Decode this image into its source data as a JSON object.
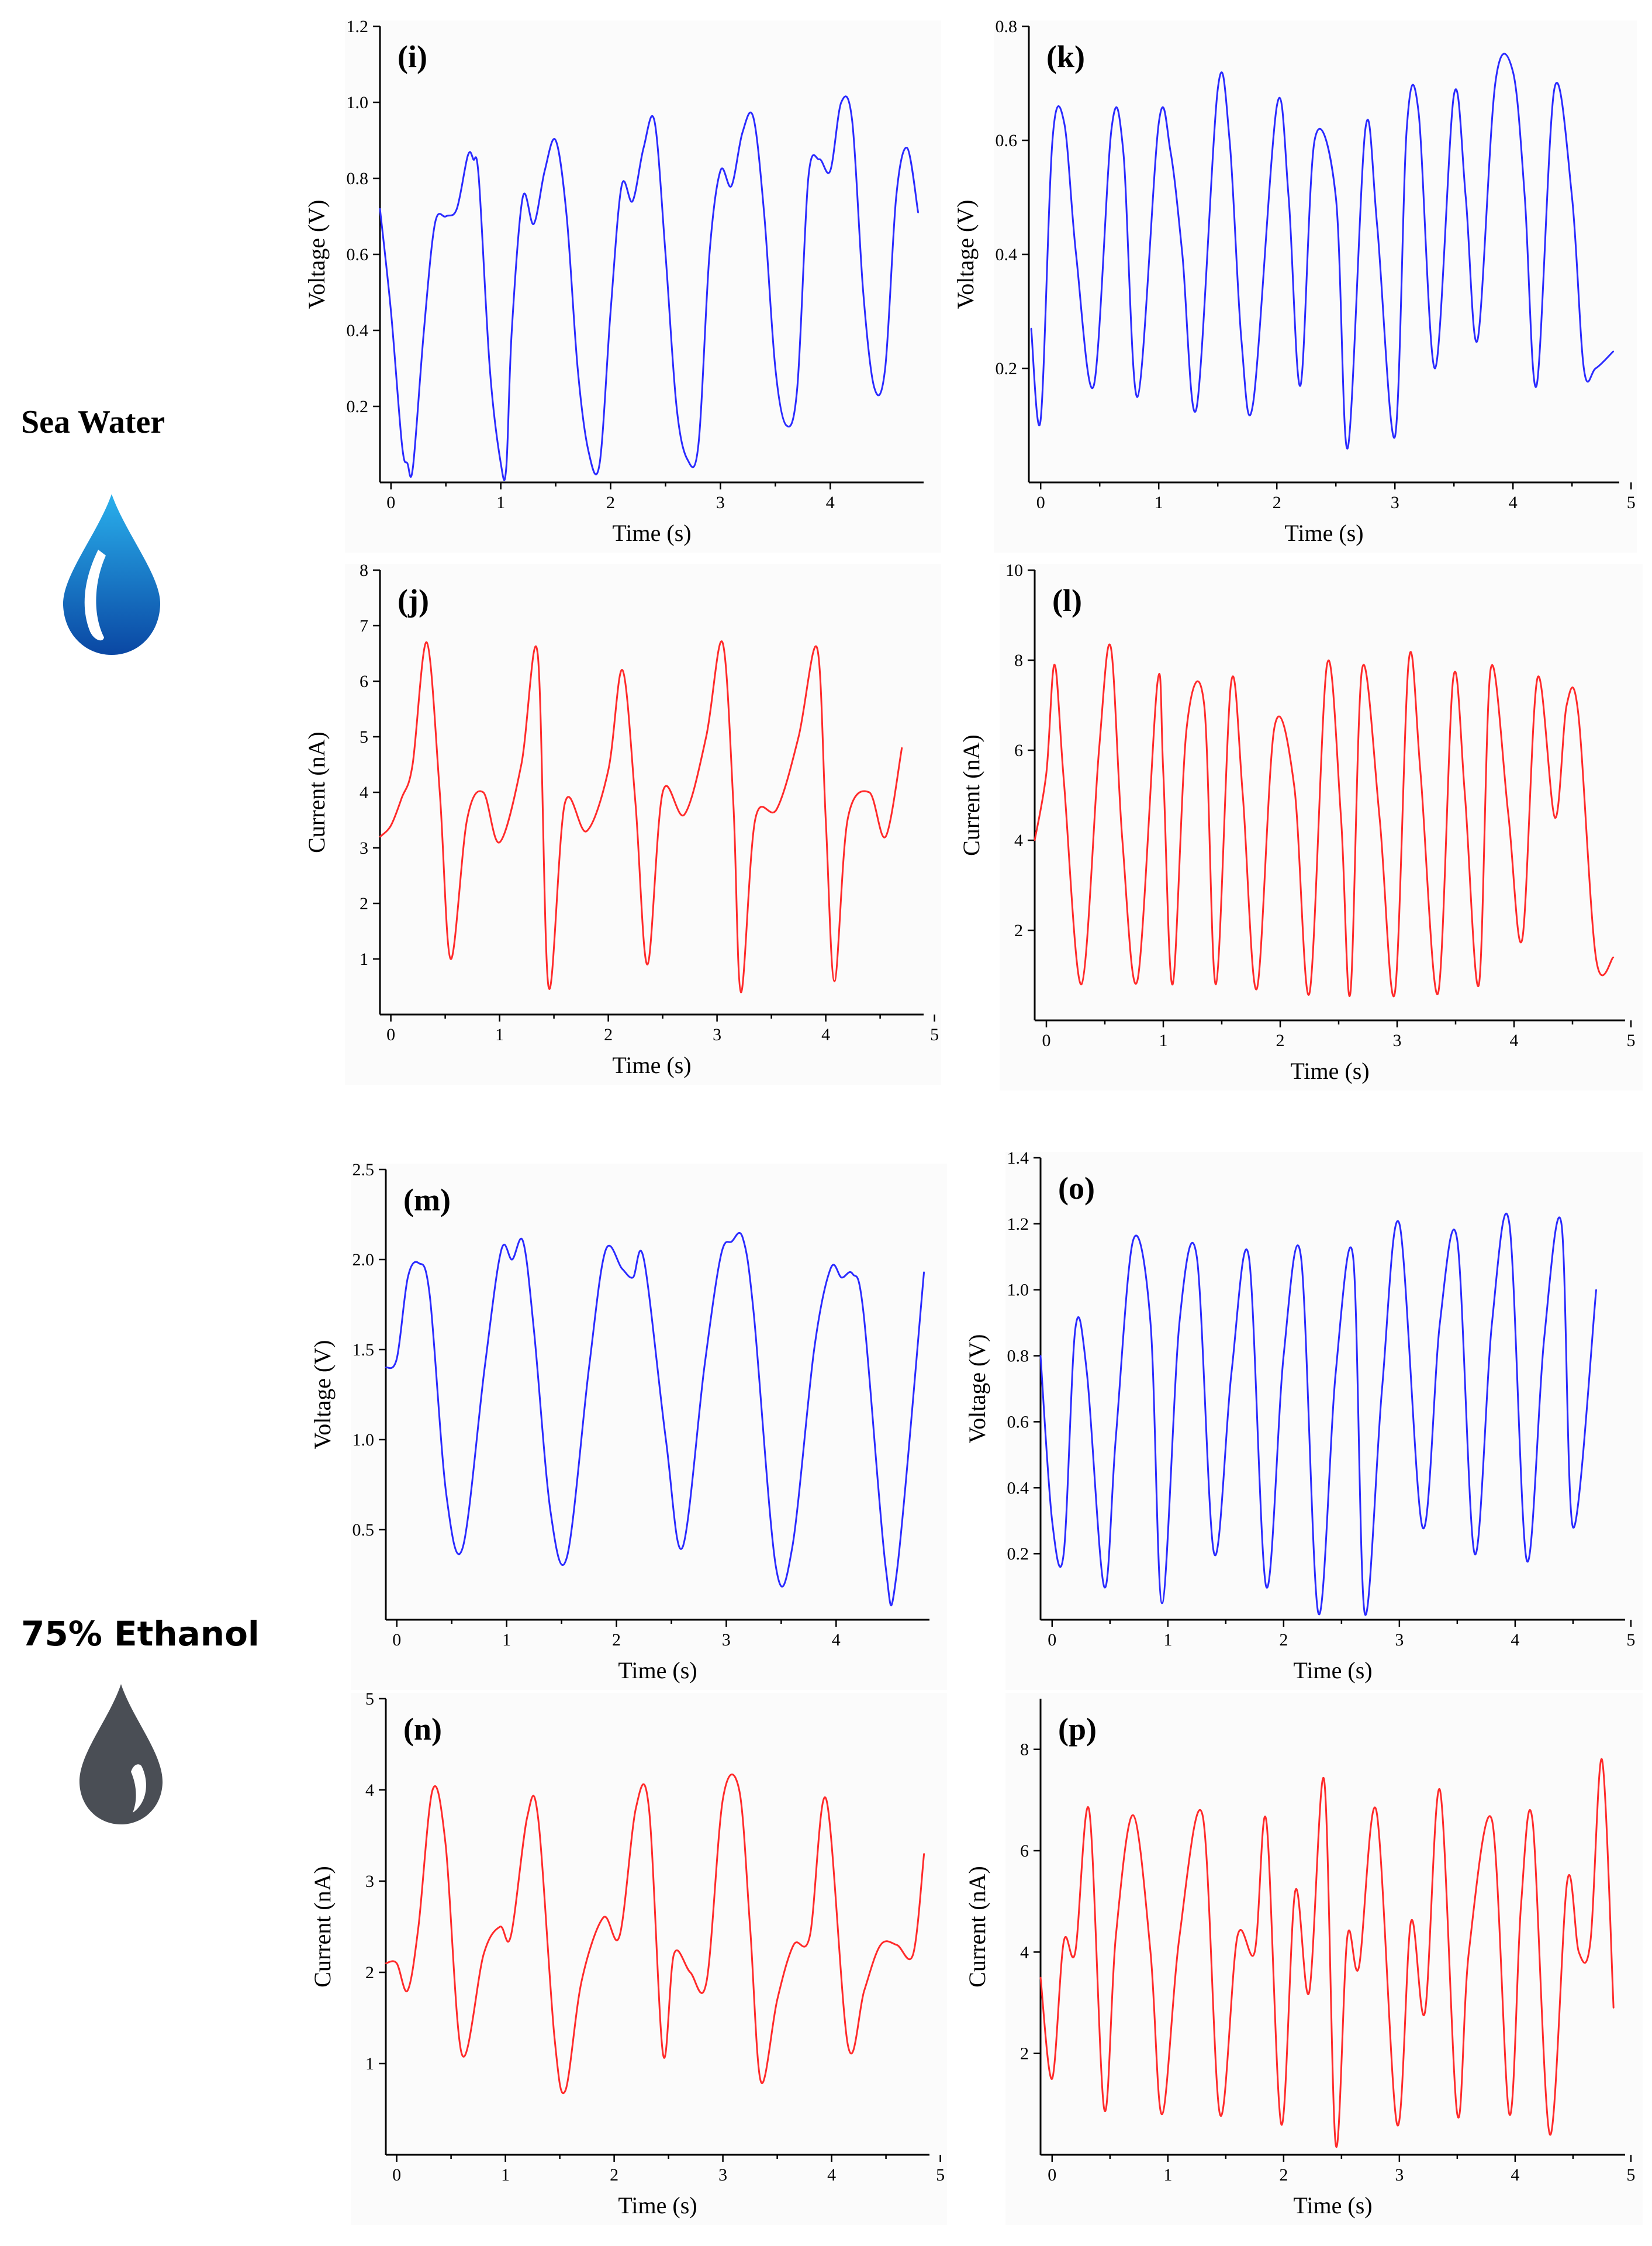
{
  "labels": {
    "sea_water": "Sea Water",
    "ethanol": "75% Ethanol"
  },
  "colors": {
    "voltage": "#2b2bff",
    "current": "#ff2b2b",
    "sea_drop_top": "#2ab0ec",
    "sea_drop_bottom": "#0a47a3",
    "eth_drop": "#4a4e55"
  },
  "icons": {
    "sea_drop": "water-drop-icon",
    "eth_drop": "ethanol-drop-icon"
  },
  "chart_data": [
    {
      "id": "i",
      "panel_label": "(i)",
      "type": "line",
      "series_name": "Voltage",
      "color": "#2b2bff",
      "xlabel": "Time (s)",
      "ylabel": "Voltage (V)",
      "xlim": [
        -0.1,
        4.85
      ],
      "ylim": [
        0.0,
        1.2
      ],
      "xticks": [
        0,
        1,
        2,
        3,
        4
      ],
      "xtick_labels": [
        "0",
        "1",
        "2",
        "3",
        "4"
      ],
      "yticks": [
        0.2,
        0.4,
        0.6,
        0.8,
        1.0,
        1.2
      ],
      "ytick_labels": [
        "0.2",
        "0.4",
        "0.6",
        "0.8",
        "1.0",
        "1.2"
      ],
      "x": [
        -0.1,
        0.0,
        0.1,
        0.15,
        0.2,
        0.3,
        0.4,
        0.5,
        0.6,
        0.7,
        0.75,
        0.8,
        0.9,
        1.0,
        1.05,
        1.1,
        1.2,
        1.3,
        1.4,
        1.5,
        1.6,
        1.7,
        1.8,
        1.9,
        2.0,
        2.1,
        2.2,
        2.3,
        2.4,
        2.5,
        2.6,
        2.7,
        2.8,
        2.9,
        3.0,
        3.1,
        3.2,
        3.3,
        3.4,
        3.5,
        3.6,
        3.7,
        3.8,
        3.9,
        4.0,
        4.1,
        4.2,
        4.3,
        4.4,
        4.5,
        4.6,
        4.7,
        4.8
      ],
      "values": [
        0.72,
        0.45,
        0.1,
        0.05,
        0.04,
        0.4,
        0.68,
        0.7,
        0.72,
        0.86,
        0.85,
        0.8,
        0.3,
        0.05,
        0.04,
        0.4,
        0.75,
        0.68,
        0.82,
        0.9,
        0.7,
        0.3,
        0.08,
        0.05,
        0.45,
        0.78,
        0.74,
        0.88,
        0.95,
        0.6,
        0.2,
        0.06,
        0.1,
        0.6,
        0.82,
        0.78,
        0.92,
        0.96,
        0.7,
        0.3,
        0.15,
        0.25,
        0.8,
        0.85,
        0.82,
        1.0,
        0.95,
        0.5,
        0.25,
        0.3,
        0.75,
        0.88,
        0.71
      ]
    },
    {
      "id": "k",
      "panel_label": "(k)",
      "type": "line",
      "series_name": "Voltage",
      "color": "#2b2bff",
      "xlabel": "Time (s)",
      "ylabel": "Voltage (V)",
      "xlim": [
        -0.1,
        4.9
      ],
      "ylim": [
        0.0,
        0.8
      ],
      "xticks": [
        0,
        1,
        2,
        3,
        4,
        5
      ],
      "xtick_labels": [
        "0",
        "1",
        "2",
        "3",
        "4",
        "5"
      ],
      "yticks": [
        0.2,
        0.4,
        0.6,
        0.8
      ],
      "ytick_labels": [
        "0.2",
        "0.4",
        "0.6",
        "0.8"
      ],
      "x": [
        -0.08,
        0.0,
        0.1,
        0.2,
        0.3,
        0.45,
        0.6,
        0.7,
        0.82,
        1.0,
        1.1,
        1.2,
        1.32,
        1.5,
        1.6,
        1.7,
        1.8,
        2.0,
        2.1,
        2.2,
        2.32,
        2.5,
        2.6,
        2.75,
        2.85,
        3.0,
        3.1,
        3.2,
        3.34,
        3.5,
        3.6,
        3.7,
        3.85,
        4.0,
        4.1,
        4.2,
        4.35,
        4.5,
        4.6,
        4.7,
        4.85
      ],
      "values": [
        0.27,
        0.11,
        0.6,
        0.63,
        0.4,
        0.17,
        0.62,
        0.58,
        0.15,
        0.63,
        0.58,
        0.4,
        0.13,
        0.69,
        0.6,
        0.25,
        0.14,
        0.66,
        0.5,
        0.17,
        0.6,
        0.5,
        0.06,
        0.62,
        0.45,
        0.08,
        0.62,
        0.65,
        0.2,
        0.68,
        0.5,
        0.25,
        0.7,
        0.72,
        0.5,
        0.17,
        0.69,
        0.5,
        0.2,
        0.2,
        0.23
      ]
    },
    {
      "id": "j",
      "panel_label": "(j)",
      "type": "line",
      "series_name": "Current",
      "color": "#ff2b2b",
      "xlabel": "Time (s)",
      "ylabel": "Current (nA)",
      "xlim": [
        -0.1,
        4.9
      ],
      "ylim": [
        0,
        8
      ],
      "xticks": [
        0,
        1,
        2,
        3,
        4,
        5
      ],
      "xtick_labels": [
        "0",
        "1",
        "2",
        "3",
        "4",
        "5"
      ],
      "yticks": [
        1,
        2,
        3,
        4,
        5,
        6,
        7,
        8
      ],
      "ytick_labels": [
        "1",
        "2",
        "3",
        "4",
        "5",
        "6",
        "7",
        "8"
      ],
      "x": [
        -0.1,
        0.0,
        0.1,
        0.2,
        0.33,
        0.45,
        0.55,
        0.7,
        0.85,
        1.0,
        1.2,
        1.35,
        1.45,
        1.6,
        1.8,
        2.0,
        2.13,
        2.25,
        2.36,
        2.5,
        2.7,
        2.9,
        3.05,
        3.15,
        3.22,
        3.35,
        3.55,
        3.75,
        3.92,
        4.0,
        4.08,
        4.2,
        4.4,
        4.55,
        4.7
      ],
      "values": [
        3.2,
        3.4,
        3.9,
        4.5,
        6.7,
        4.0,
        1.0,
        3.5,
        4.0,
        3.1,
        4.5,
        6.5,
        0.5,
        3.8,
        3.3,
        4.4,
        6.2,
        3.8,
        0.9,
        4.0,
        3.6,
        5.0,
        6.7,
        3.8,
        0.4,
        3.5,
        3.7,
        5.0,
        6.6,
        3.5,
        0.6,
        3.5,
        4.0,
        3.2,
        4.8
      ]
    },
    {
      "id": "l",
      "panel_label": "(l)",
      "type": "line",
      "series_name": "Current",
      "color": "#ff2b2b",
      "xlabel": "Time (s)",
      "ylabel": "Current (nA)",
      "xlim": [
        -0.1,
        4.95
      ],
      "ylim": [
        0,
        10
      ],
      "xticks": [
        0,
        1,
        2,
        3,
        4,
        5
      ],
      "xtick_labels": [
        "0",
        "1",
        "2",
        "3",
        "4",
        "5"
      ],
      "yticks": [
        2,
        4,
        6,
        8,
        10
      ],
      "ytick_labels": [
        "2",
        "4",
        "6",
        "8",
        "10"
      ],
      "x": [
        -0.1,
        0.0,
        0.07,
        0.15,
        0.3,
        0.45,
        0.55,
        0.65,
        0.78,
        0.95,
        1.0,
        1.08,
        1.2,
        1.35,
        1.45,
        1.58,
        1.68,
        1.8,
        1.95,
        2.12,
        2.25,
        2.4,
        2.52,
        2.6,
        2.7,
        2.85,
        2.98,
        3.1,
        3.2,
        3.35,
        3.48,
        3.58,
        3.7,
        3.8,
        3.95,
        4.07,
        4.2,
        4.35,
        4.45,
        4.55,
        4.7,
        4.85
      ],
      "values": [
        4.0,
        5.5,
        7.9,
        5.3,
        0.8,
        6.0,
        8.3,
        4.0,
        0.9,
        7.5,
        5.5,
        0.8,
        6.5,
        7.0,
        0.8,
        7.5,
        5.0,
        0.7,
        6.5,
        5.2,
        0.6,
        7.9,
        4.5,
        0.6,
        7.8,
        4.5,
        0.6,
        8.0,
        5.5,
        0.6,
        7.6,
        5.0,
        0.8,
        7.8,
        4.6,
        1.8,
        7.6,
        4.5,
        7.0,
        6.8,
        1.4,
        1.4
      ]
    },
    {
      "id": "m",
      "panel_label": "(m)",
      "type": "line",
      "series_name": "Voltage",
      "color": "#2b2bff",
      "xlabel": "Time (s)",
      "ylabel": "Voltage (V)",
      "xlim": [
        -0.1,
        4.85
      ],
      "ylim": [
        0.0,
        2.5
      ],
      "xticks": [
        0,
        1,
        2,
        3,
        4
      ],
      "xtick_labels": [
        "0",
        "1",
        "2",
        "3",
        "4"
      ],
      "yticks": [
        0.5,
        1.0,
        1.5,
        2.0,
        2.5
      ],
      "ytick_labels": [
        "0.5",
        "1.0",
        "1.5",
        "2.0",
        "2.5"
      ],
      "x": [
        -0.1,
        0.0,
        0.1,
        0.2,
        0.3,
        0.45,
        0.6,
        0.8,
        0.95,
        1.05,
        1.15,
        1.25,
        1.4,
        1.55,
        1.75,
        1.9,
        2.05,
        2.15,
        2.25,
        2.45,
        2.6,
        2.8,
        2.95,
        3.05,
        3.15,
        3.25,
        3.45,
        3.6,
        3.8,
        3.95,
        4.05,
        4.15,
        4.25,
        4.45,
        4.55,
        4.8
      ],
      "values": [
        1.4,
        1.45,
        1.9,
        1.98,
        1.8,
        0.7,
        0.4,
        1.4,
        2.05,
        2.0,
        2.1,
        1.6,
        0.6,
        0.35,
        1.4,
        2.05,
        1.95,
        1.9,
        2.0,
        1.0,
        0.4,
        1.4,
        2.02,
        2.1,
        2.12,
        1.7,
        0.3,
        0.4,
        1.5,
        1.95,
        1.9,
        1.92,
        1.7,
        0.3,
        0.25,
        1.93
      ]
    },
    {
      "id": "o",
      "panel_label": "(o)",
      "type": "line",
      "series_name": "Voltage",
      "color": "#2b2bff",
      "xlabel": "Time (s)",
      "ylabel": "Voltage (V)",
      "xlim": [
        -0.1,
        4.95
      ],
      "ylim": [
        0.0,
        1.4
      ],
      "xticks": [
        0,
        1,
        2,
        3,
        4,
        5
      ],
      "xtick_labels": [
        "0",
        "1",
        "2",
        "3",
        "4",
        "5"
      ],
      "yticks": [
        0.2,
        0.4,
        0.6,
        0.8,
        1.0,
        1.2,
        1.4
      ],
      "ytick_labels": [
        "0.2",
        "0.4",
        "0.6",
        "0.8",
        "1.0",
        "1.2",
        "1.4"
      ],
      "x": [
        -0.1,
        0.0,
        0.1,
        0.2,
        0.3,
        0.45,
        0.55,
        0.7,
        0.85,
        0.95,
        1.1,
        1.25,
        1.4,
        1.55,
        1.7,
        1.85,
        2.0,
        2.15,
        2.3,
        2.45,
        2.6,
        2.7,
        2.85,
        3.0,
        3.2,
        3.35,
        3.5,
        3.65,
        3.8,
        3.95,
        4.1,
        4.25,
        4.4,
        4.5,
        4.7
      ],
      "values": [
        0.8,
        0.3,
        0.2,
        0.88,
        0.75,
        0.1,
        0.55,
        1.15,
        0.9,
        0.05,
        0.9,
        1.1,
        0.2,
        0.75,
        1.1,
        0.1,
        0.8,
        1.1,
        0.02,
        0.75,
        1.1,
        0.02,
        0.7,
        1.2,
        0.28,
        0.9,
        1.15,
        0.2,
        0.9,
        1.2,
        0.18,
        0.85,
        1.2,
        0.28,
        1.0
      ]
    },
    {
      "id": "n",
      "panel_label": "(n)",
      "type": "line",
      "series_name": "Current",
      "color": "#ff2b2b",
      "xlabel": "Time (s)",
      "ylabel": "Current (nA)",
      "xlim": [
        -0.1,
        4.9
      ],
      "ylim": [
        0,
        5
      ],
      "xticks": [
        0,
        1,
        2,
        3,
        4,
        5
      ],
      "xtick_labels": [
        "0",
        "1",
        "2",
        "3",
        "4",
        "5"
      ],
      "yticks": [
        1,
        2,
        3,
        4,
        5
      ],
      "ytick_labels": [
        "1",
        "2",
        "3",
        "4",
        "5"
      ],
      "x": [
        -0.1,
        0.0,
        0.1,
        0.2,
        0.33,
        0.45,
        0.6,
        0.8,
        0.95,
        1.05,
        1.2,
        1.3,
        1.45,
        1.55,
        1.7,
        1.9,
        2.05,
        2.2,
        2.32,
        2.45,
        2.55,
        2.7,
        2.85,
        3.0,
        3.15,
        3.25,
        3.35,
        3.5,
        3.65,
        3.8,
        3.95,
        4.15,
        4.3,
        4.45,
        4.6,
        4.75,
        4.85
      ],
      "values": [
        2.1,
        2.1,
        1.8,
        2.5,
        4.0,
        3.4,
        1.1,
        2.2,
        2.5,
        2.4,
        3.7,
        3.7,
        1.3,
        0.7,
        1.9,
        2.6,
        2.4,
        3.8,
        3.8,
        1.1,
        2.2,
        2.0,
        1.9,
        3.9,
        4.0,
        2.5,
        0.8,
        1.7,
        2.3,
        2.4,
        3.9,
        1.2,
        1.8,
        2.3,
        2.3,
        2.2,
        3.3
      ]
    },
    {
      "id": "p",
      "panel_label": "(p)",
      "type": "line",
      "series_name": "Current",
      "color": "#ff2b2b",
      "xlabel": "Time (s)",
      "ylabel": "Current (nA)",
      "xlim": [
        -0.1,
        4.95
      ],
      "ylim": [
        0,
        9
      ],
      "xticks": [
        0,
        1,
        2,
        3,
        4,
        5
      ],
      "xtick_labels": [
        "0",
        "1",
        "2",
        "3",
        "4",
        "5"
      ],
      "yticks": [
        2,
        4,
        6,
        8
      ],
      "ytick_labels": [
        "2",
        "4",
        "6",
        "8"
      ],
      "x": [
        -0.1,
        0.0,
        0.1,
        0.2,
        0.32,
        0.45,
        0.55,
        0.7,
        0.85,
        0.95,
        1.1,
        1.3,
        1.45,
        1.6,
        1.75,
        1.85,
        1.98,
        2.1,
        2.22,
        2.35,
        2.45,
        2.55,
        2.65,
        2.8,
        2.98,
        3.1,
        3.22,
        3.35,
        3.5,
        3.6,
        3.8,
        3.95,
        4.05,
        4.15,
        4.3,
        4.45,
        4.55,
        4.65,
        4.75,
        4.85
      ],
      "values": [
        3.5,
        1.5,
        4.2,
        4.0,
        6.8,
        0.9,
        4.3,
        6.7,
        4.0,
        0.8,
        4.3,
        6.7,
        0.8,
        4.3,
        4.0,
        6.6,
        0.6,
        5.2,
        3.2,
        7.4,
        0.2,
        4.3,
        3.7,
        6.8,
        0.6,
        4.6,
        2.8,
        7.2,
        0.8,
        4.0,
        6.6,
        0.8,
        4.9,
        6.6,
        0.4,
        5.4,
        4.0,
        4.2,
        7.8,
        2.9
      ]
    }
  ]
}
